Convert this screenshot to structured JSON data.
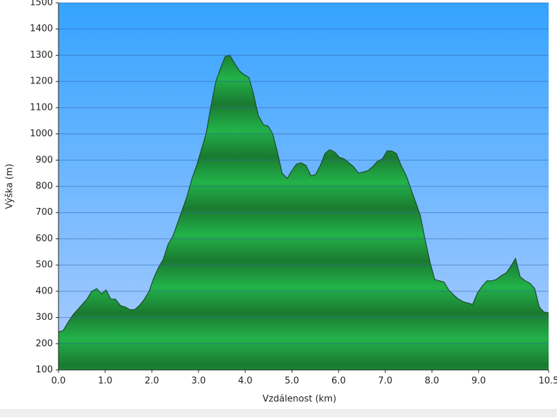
{
  "chart_data": {
    "type": "area",
    "xlabel": "Vzdálenost   (km)",
    "ylabel": "Výška (m)",
    "color": "#1f9a3a",
    "x": [
      0,
      0.1,
      0.2,
      0.31,
      0.41,
      0.51,
      0.61,
      0.71,
      0.82,
      0.92,
      1.02,
      1.12,
      1.22,
      1.33,
      1.43,
      1.53,
      1.63,
      1.73,
      1.84,
      1.94,
      2.04,
      2.14,
      2.24,
      2.35,
      2.45,
      2.55,
      2.65,
      2.75,
      2.86,
      2.96,
      3.06,
      3.16,
      3.26,
      3.37,
      3.47,
      3.57,
      3.67,
      3.77,
      3.88,
      3.98,
      4.08,
      4.18,
      4.28,
      4.39,
      4.49,
      4.59,
      4.69,
      4.79,
      4.9,
      5.0,
      5.1,
      5.2,
      5.3,
      5.41,
      5.51,
      5.61,
      5.71,
      5.81,
      5.92,
      6.02,
      6.12,
      6.22,
      6.32,
      6.43,
      6.53,
      6.63,
      6.73,
      6.83,
      6.94,
      7.04,
      7.14,
      7.24,
      7.34,
      7.45,
      7.55,
      7.65,
      7.75,
      7.85,
      7.96,
      8.06,
      8.16,
      8.26,
      8.36,
      8.47,
      8.57,
      8.67,
      8.77,
      8.87,
      8.98,
      9.08,
      9.18,
      9.28,
      9.38,
      9.49,
      9.59,
      9.69,
      9.79,
      9.89,
      10.0,
      10.1,
      10.2,
      10.3,
      10.4,
      10.5
    ],
    "values": [
      245,
      250,
      280,
      310,
      330,
      350,
      370,
      400,
      410,
      390,
      405,
      370,
      370,
      345,
      340,
      330,
      330,
      345,
      370,
      400,
      450,
      490,
      520,
      580,
      610,
      660,
      710,
      760,
      830,
      880,
      940,
      1000,
      1100,
      1200,
      1250,
      1295,
      1300,
      1270,
      1240,
      1225,
      1215,
      1150,
      1070,
      1035,
      1030,
      1000,
      930,
      850,
      830,
      860,
      885,
      890,
      880,
      840,
      845,
      880,
      925,
      940,
      930,
      910,
      905,
      890,
      875,
      850,
      855,
      860,
      875,
      895,
      905,
      935,
      935,
      925,
      880,
      840,
      790,
      740,
      690,
      600,
      510,
      445,
      440,
      435,
      405,
      385,
      370,
      360,
      355,
      350,
      395,
      420,
      440,
      440,
      445,
      460,
      470,
      495,
      525,
      455,
      440,
      430,
      410,
      340,
      320,
      318
    ],
    "xlim": [
      0,
      10.5
    ],
    "ylim": [
      100,
      1500
    ],
    "xticks": [
      {
        "value": 0,
        "label": "0.0"
      },
      {
        "value": 1,
        "label": "1.0"
      },
      {
        "value": 2,
        "label": "2.0"
      },
      {
        "value": 3,
        "label": "3.0"
      },
      {
        "value": 4,
        "label": "4.0"
      },
      {
        "value": 5,
        "label": "5.0"
      },
      {
        "value": 6,
        "label": "6.0"
      },
      {
        "value": 7,
        "label": "7.0"
      },
      {
        "value": 8,
        "label": "8.0"
      },
      {
        "value": 9,
        "label": "9.0"
      },
      {
        "value": 10.5,
        "label": "10.5"
      }
    ],
    "yticks": [
      100,
      200,
      300,
      400,
      500,
      600,
      700,
      800,
      900,
      1000,
      1100,
      1200,
      1300,
      1400,
      1500
    ],
    "grid": true
  }
}
